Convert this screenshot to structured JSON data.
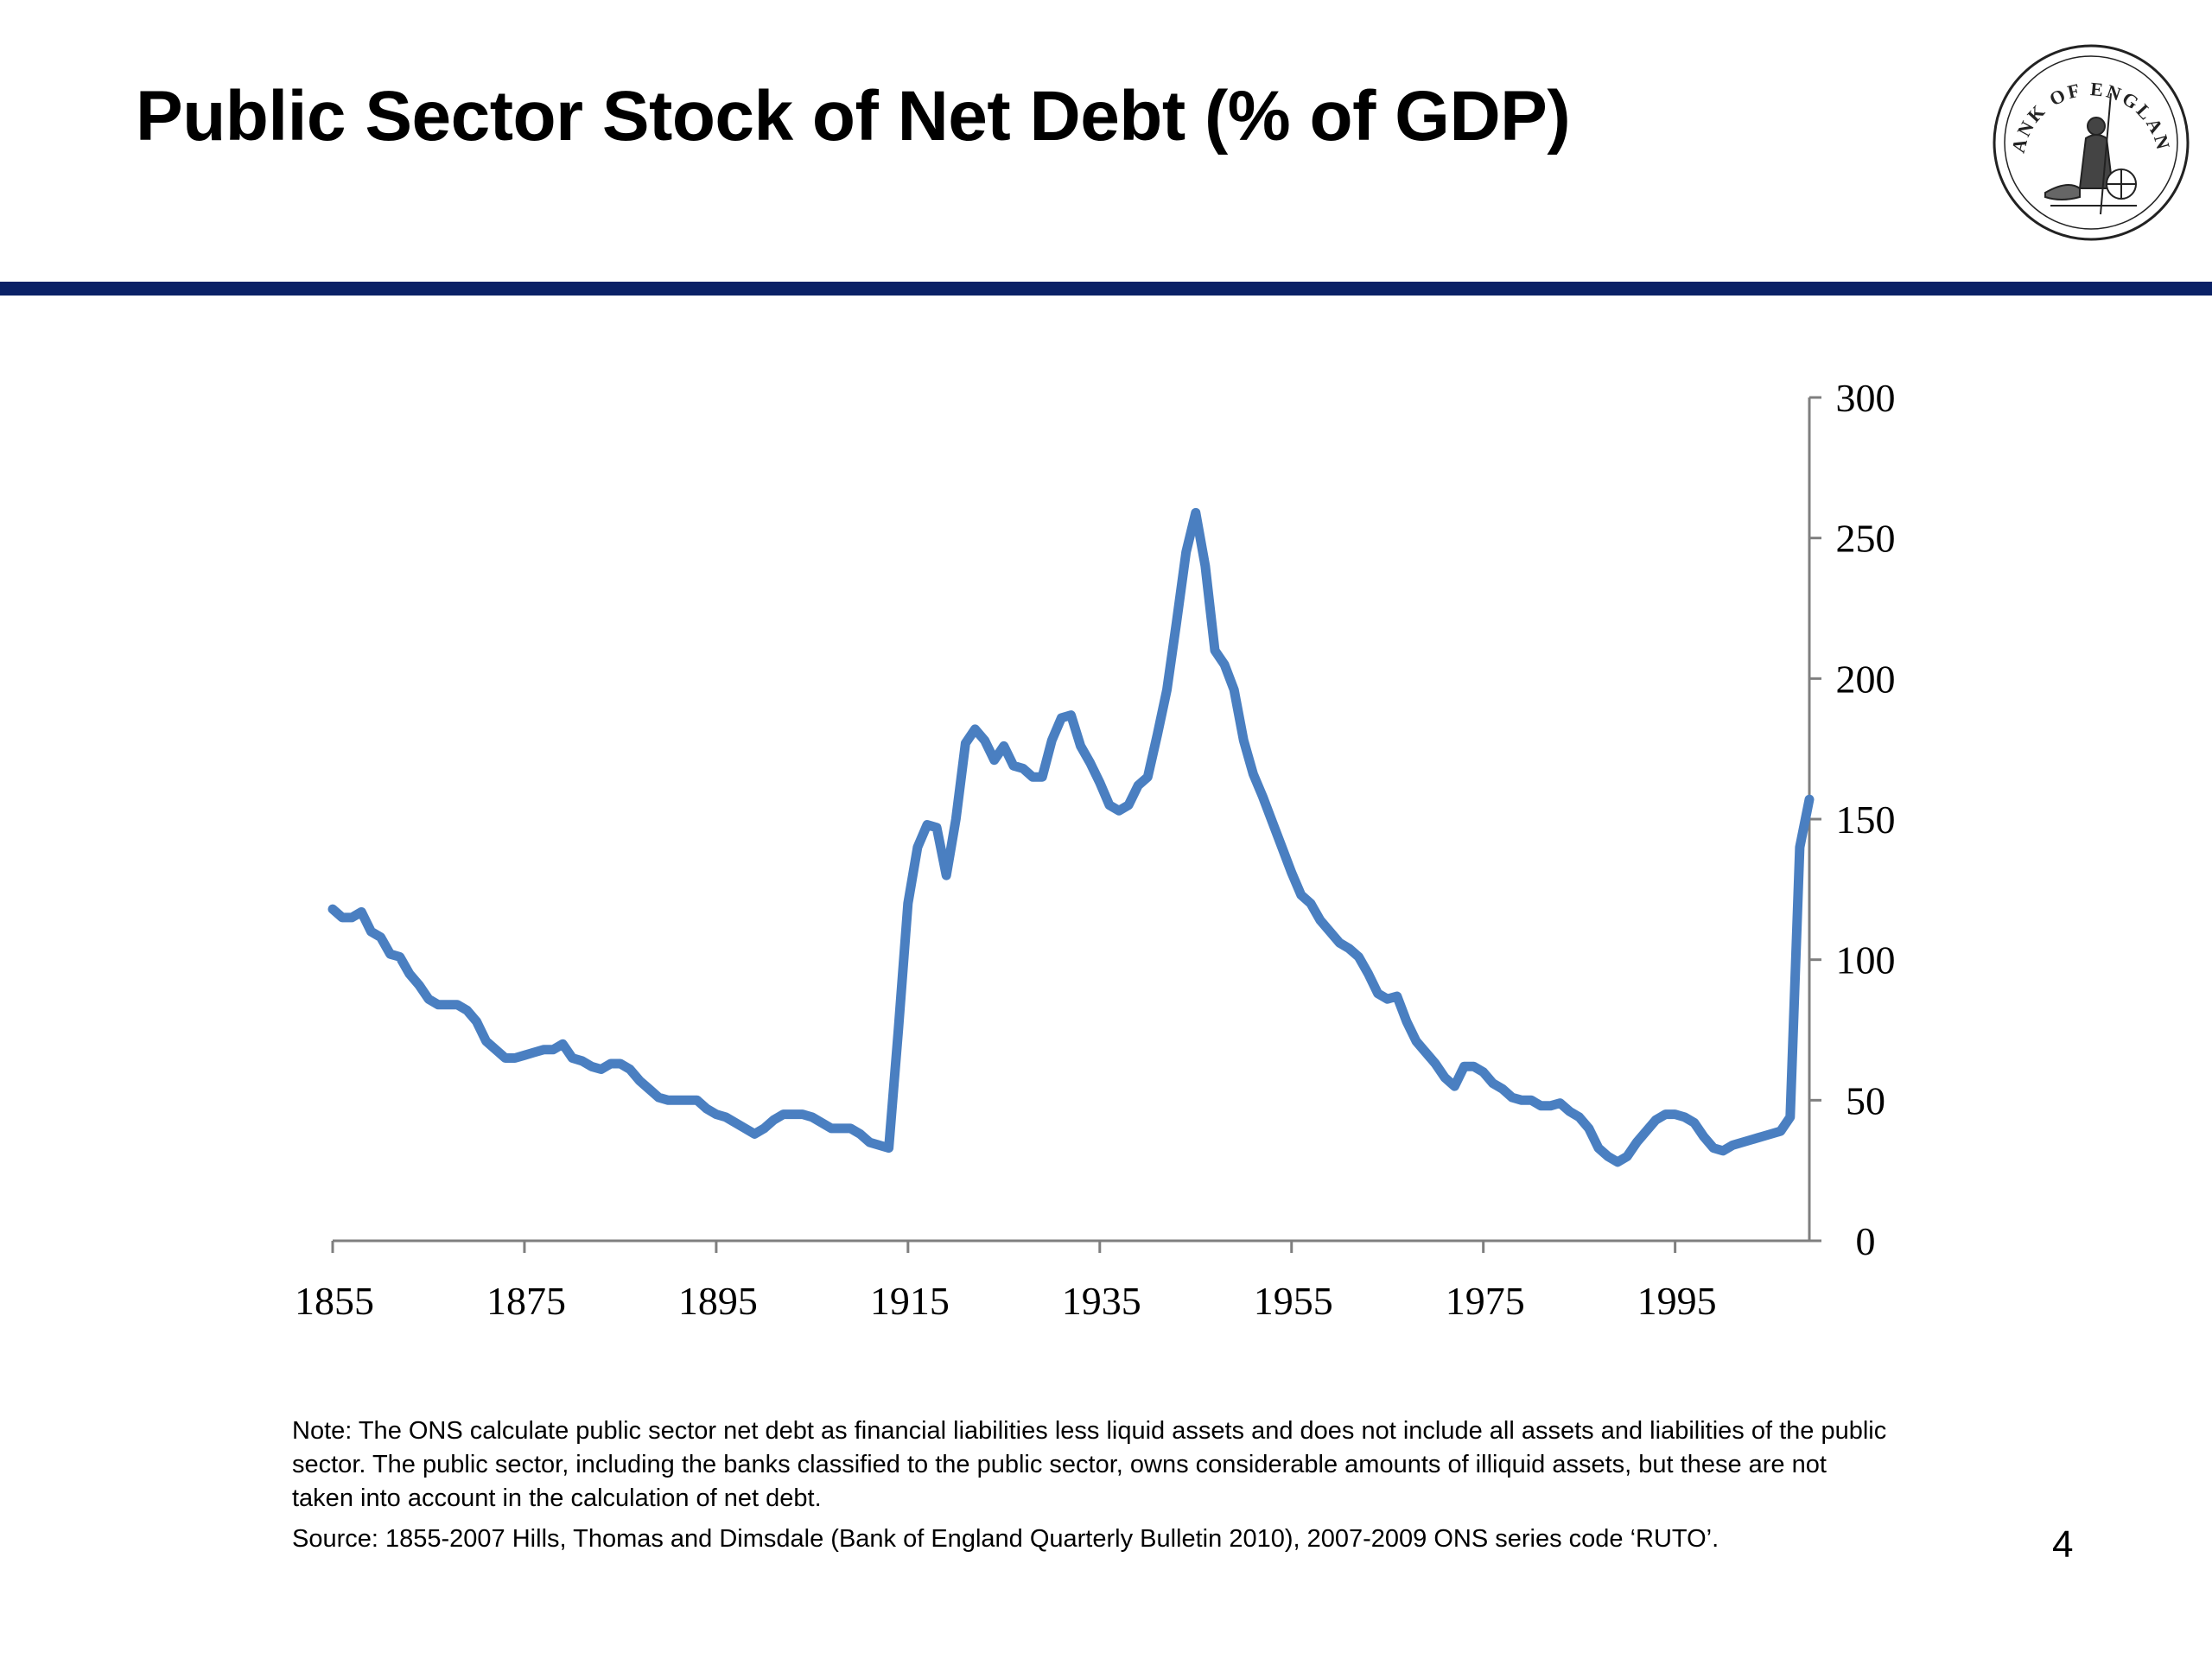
{
  "slide": {
    "title": "Public Sector Stock of Net Debt (% of GDP)",
    "logo_text": "BANK OF ENGLAND",
    "rule_color": "#0a2166",
    "note": "Note: The ONS calculate public sector net debt as financial liabilities less liquid assets and does not include all assets and liabilities of the public sector. The public sector, including the banks classified to the public sector, owns considerable amounts of illiquid assets, but these are not taken into account in the calculation of net debt.",
    "source": "Source: 1855-2007 Hills, Thomas and Dimsdale (Bank of England Quarterly Bulletin 2010), 2007-2009 ONS series code ‘RUTO’.",
    "page_number": "4"
  },
  "chart_data": {
    "type": "line",
    "title": "Public Sector Stock of Net Debt (% of GDP)",
    "xlabel": "",
    "ylabel": "",
    "xlim": [
      1855,
      2009
    ],
    "ylim": [
      0,
      300
    ],
    "x_ticks": [
      "1855",
      "1875",
      "1895",
      "1915",
      "1935",
      "1955",
      "1975",
      "1995"
    ],
    "y_ticks": [
      "0",
      "50",
      "100",
      "150",
      "200",
      "250",
      "300"
    ],
    "y_axis_position": "right",
    "grid": false,
    "legend": "none",
    "line_color": "#4a7fc1",
    "series": [
      {
        "name": "",
        "x": [
          1855,
          1856,
          1857,
          1858,
          1859,
          1860,
          1861,
          1862,
          1863,
          1864,
          1865,
          1866,
          1867,
          1868,
          1869,
          1870,
          1871,
          1872,
          1873,
          1874,
          1875,
          1876,
          1877,
          1878,
          1879,
          1880,
          1881,
          1882,
          1883,
          1884,
          1885,
          1886,
          1887,
          1888,
          1889,
          1890,
          1891,
          1892,
          1893,
          1894,
          1895,
          1896,
          1897,
          1898,
          1899,
          1900,
          1901,
          1902,
          1903,
          1904,
          1905,
          1906,
          1907,
          1908,
          1909,
          1910,
          1911,
          1912,
          1913,
          1914,
          1915,
          1916,
          1917,
          1918,
          1919,
          1920,
          1921,
          1922,
          1923,
          1924,
          1925,
          1926,
          1927,
          1928,
          1929,
          1930,
          1931,
          1932,
          1933,
          1934,
          1935,
          1936,
          1937,
          1938,
          1939,
          1940,
          1941,
          1942,
          1943,
          1944,
          1945,
          1946,
          1947,
          1948,
          1949,
          1950,
          1951,
          1952,
          1953,
          1954,
          1955,
          1956,
          1957,
          1958,
          1959,
          1960,
          1961,
          1962,
          1963,
          1964,
          1965,
          1966,
          1967,
          1968,
          1969,
          1970,
          1971,
          1972,
          1973,
          1974,
          1975,
          1976,
          1977,
          1978,
          1979,
          1980,
          1981,
          1982,
          1983,
          1984,
          1985,
          1986,
          1987,
          1988,
          1989,
          1990,
          1991,
          1992,
          1993,
          1994,
          1995,
          1996,
          1997,
          1998,
          1999,
          2000,
          2001,
          2002,
          2003,
          2004,
          2005,
          2006,
          2007,
          2008,
          2009
        ],
        "values": [
          118,
          115,
          115,
          117,
          110,
          108,
          102,
          101,
          95,
          91,
          86,
          84,
          84,
          84,
          82,
          78,
          71,
          68,
          65,
          65,
          66,
          67,
          68,
          68,
          70,
          65,
          64,
          62,
          61,
          63,
          63,
          61,
          57,
          54,
          51,
          50,
          50,
          50,
          50,
          47,
          45,
          44,
          42,
          40,
          38,
          40,
          43,
          45,
          45,
          45,
          44,
          42,
          40,
          40,
          40,
          38,
          35,
          34,
          33,
          75,
          120,
          140,
          148,
          147,
          130,
          150,
          177,
          182,
          178,
          171,
          176,
          169,
          168,
          165,
          165,
          178,
          186,
          187,
          176,
          170,
          163,
          155,
          153,
          155,
          162,
          165,
          180,
          196,
          220,
          245,
          259,
          240,
          210,
          205,
          196,
          178,
          166,
          158,
          149,
          140,
          131,
          123,
          120,
          114,
          110,
          106,
          104,
          101,
          95,
          88,
          86,
          87,
          78,
          71,
          67,
          63,
          58,
          55,
          62,
          62,
          60,
          56,
          54,
          51,
          50,
          50,
          48,
          48,
          49,
          46,
          44,
          40,
          33,
          30,
          28,
          30,
          35,
          39,
          43,
          45,
          45,
          44,
          42,
          37,
          33,
          32,
          34,
          35,
          36,
          37,
          38,
          39,
          44,
          140,
          157
        ]
      }
    ]
  }
}
